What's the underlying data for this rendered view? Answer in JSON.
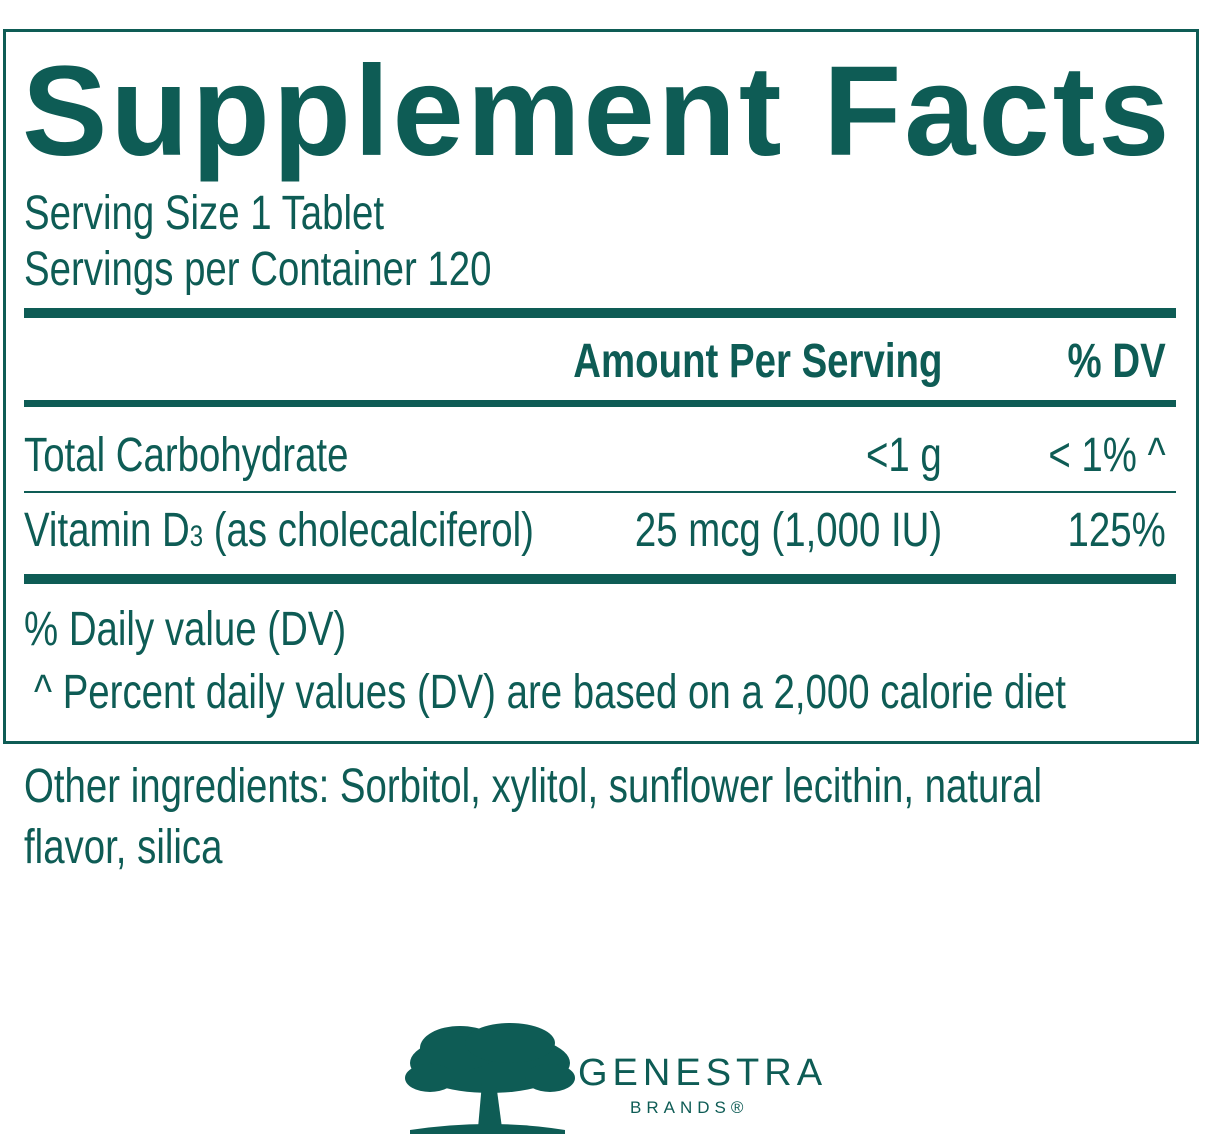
{
  "title": "Supplement Facts",
  "serving_size": "Serving Size 1 Tablet",
  "servings_per_container": "Servings per Container 120",
  "header": {
    "amount": "Amount Per Serving",
    "dv": "% DV"
  },
  "rows": [
    {
      "name": "Total Carbohydrate",
      "amount": "<1 g",
      "dv": "< 1% ^"
    },
    {
      "name": "Vitamin D3 (as cholecalciferol)",
      "amount": "25 mcg (1,000  IU)",
      "dv": "125%"
    }
  ],
  "footnotes": [
    "% Daily value (DV)",
    "^ Percent daily values (DV) are based on a 2,000 calorie diet"
  ],
  "other_ingredients": [
    "Other ingredients: Sorbitol, xylitol, sunflower lecithin, natural",
    "flavor, silica"
  ],
  "brand": {
    "name": "GENESTRA",
    "sub": "BRANDS®"
  },
  "colors": {
    "primary": "#0e5c55"
  }
}
